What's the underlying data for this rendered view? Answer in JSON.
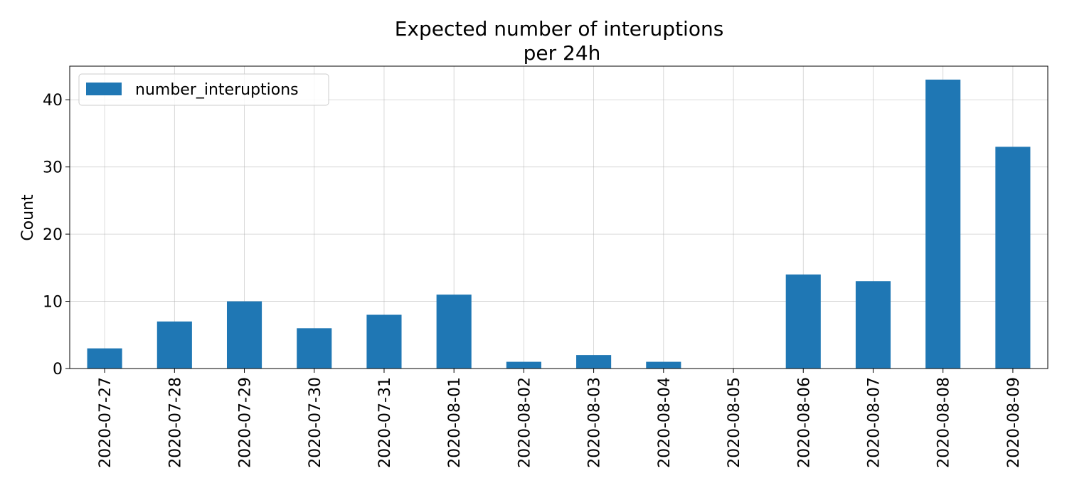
{
  "chart_data": {
    "type": "bar",
    "title_lines": [
      "Expected number of interuptions",
      "per 24h"
    ],
    "xlabel": "",
    "ylabel": "Count",
    "categories": [
      "2020-07-27",
      "2020-07-28",
      "2020-07-29",
      "2020-07-30",
      "2020-07-31",
      "2020-08-01",
      "2020-08-02",
      "2020-08-03",
      "2020-08-04",
      "2020-08-05",
      "2020-08-06",
      "2020-08-07",
      "2020-08-08",
      "2020-08-09"
    ],
    "series": [
      {
        "name": "number_interuptions",
        "color": "#1f77b4",
        "values": [
          3,
          7,
          10,
          6,
          8,
          11,
          1,
          2,
          1,
          0,
          14,
          13,
          43,
          33
        ]
      }
    ],
    "ylim": [
      0,
      45
    ],
    "yticks": [
      0,
      10,
      20,
      30,
      40
    ],
    "grid": true,
    "legend_position": "top-left"
  }
}
